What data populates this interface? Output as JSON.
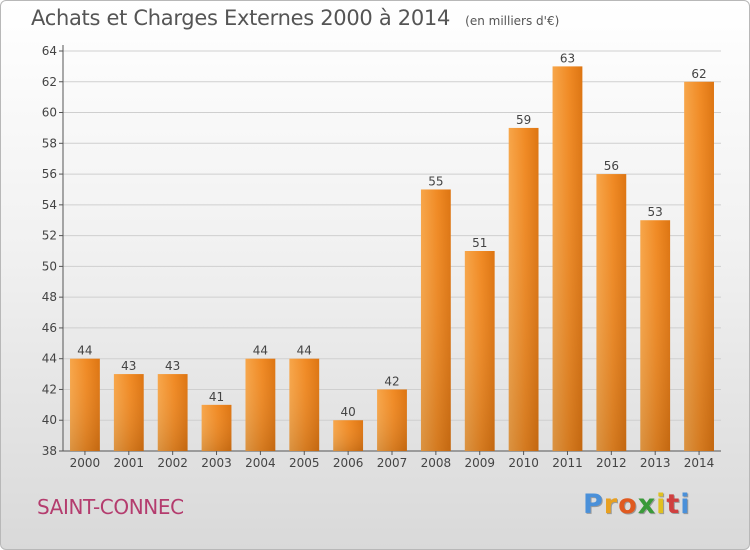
{
  "chart_data": {
    "type": "bar",
    "title": "Achats et Charges Externes 2000 à 2014",
    "subtitle": "(en milliers d'€)",
    "categories": [
      "2000",
      "2001",
      "2002",
      "2003",
      "2004",
      "2005",
      "2006",
      "2007",
      "2008",
      "2009",
      "2010",
      "2011",
      "2012",
      "2013",
      "2014"
    ],
    "values": [
      44,
      43,
      43,
      41,
      44,
      44,
      40,
      42,
      55,
      51,
      59,
      63,
      56,
      53,
      62
    ],
    "ylim": [
      38,
      64
    ],
    "yticks": [
      38,
      40,
      42,
      44,
      46,
      48,
      50,
      52,
      54,
      56,
      58,
      60,
      62,
      64
    ],
    "grid": true,
    "bar_color": "#f08a24"
  },
  "commune": "SAINT-CONNEC",
  "brand": {
    "letters": [
      "P",
      "r",
      "o",
      "x",
      "i",
      "t",
      "i"
    ],
    "colors": [
      "#4a90d9",
      "#e8a020",
      "#e05a20",
      "#3a9a3a",
      "#e0c020",
      "#d04040",
      "#4a90d9"
    ]
  }
}
